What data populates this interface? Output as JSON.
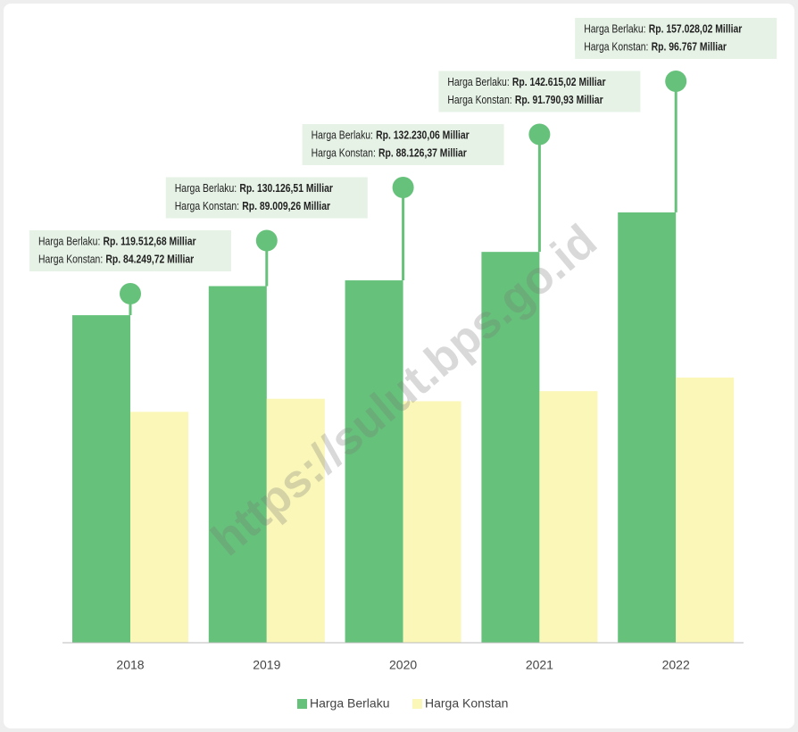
{
  "chart_data": {
    "type": "bar",
    "watermark": "https://sulut.bps.go.id",
    "categories": [
      "2018",
      "2019",
      "2020",
      "2021",
      "2022"
    ],
    "ylim": [
      0,
      200000
    ],
    "series": [
      {
        "name": "Harga Berlaku",
        "annotation_label": "Harga Berlaku:",
        "color": "#66c27b",
        "values": [
          119512.68,
          130126.51,
          132230.06,
          142615.02,
          157028.02
        ],
        "value_labels": [
          "Rp. 119.512,68 Milliar",
          "Rp. 130.126,51 Milliar",
          "Rp. 132.230,06 Milliar",
          "Rp. 142.615,02 Milliar",
          "Rp. 157.028,02 Milliar"
        ]
      },
      {
        "name": "Harga Konstan",
        "annotation_label": "Harga Konstan:",
        "color": "#faf7b8",
        "values": [
          84249.72,
          89009.26,
          88126.37,
          91790.93,
          96767
        ],
        "value_labels": [
          "Rp. 84.249,72 Milliar",
          "Rp. 89.009,26 Milliar",
          "Rp. 88.126,37 Milliar",
          "Rp. 91.790,93 Milliar",
          "Rp. 96.767 Milliar"
        ]
      }
    ]
  }
}
